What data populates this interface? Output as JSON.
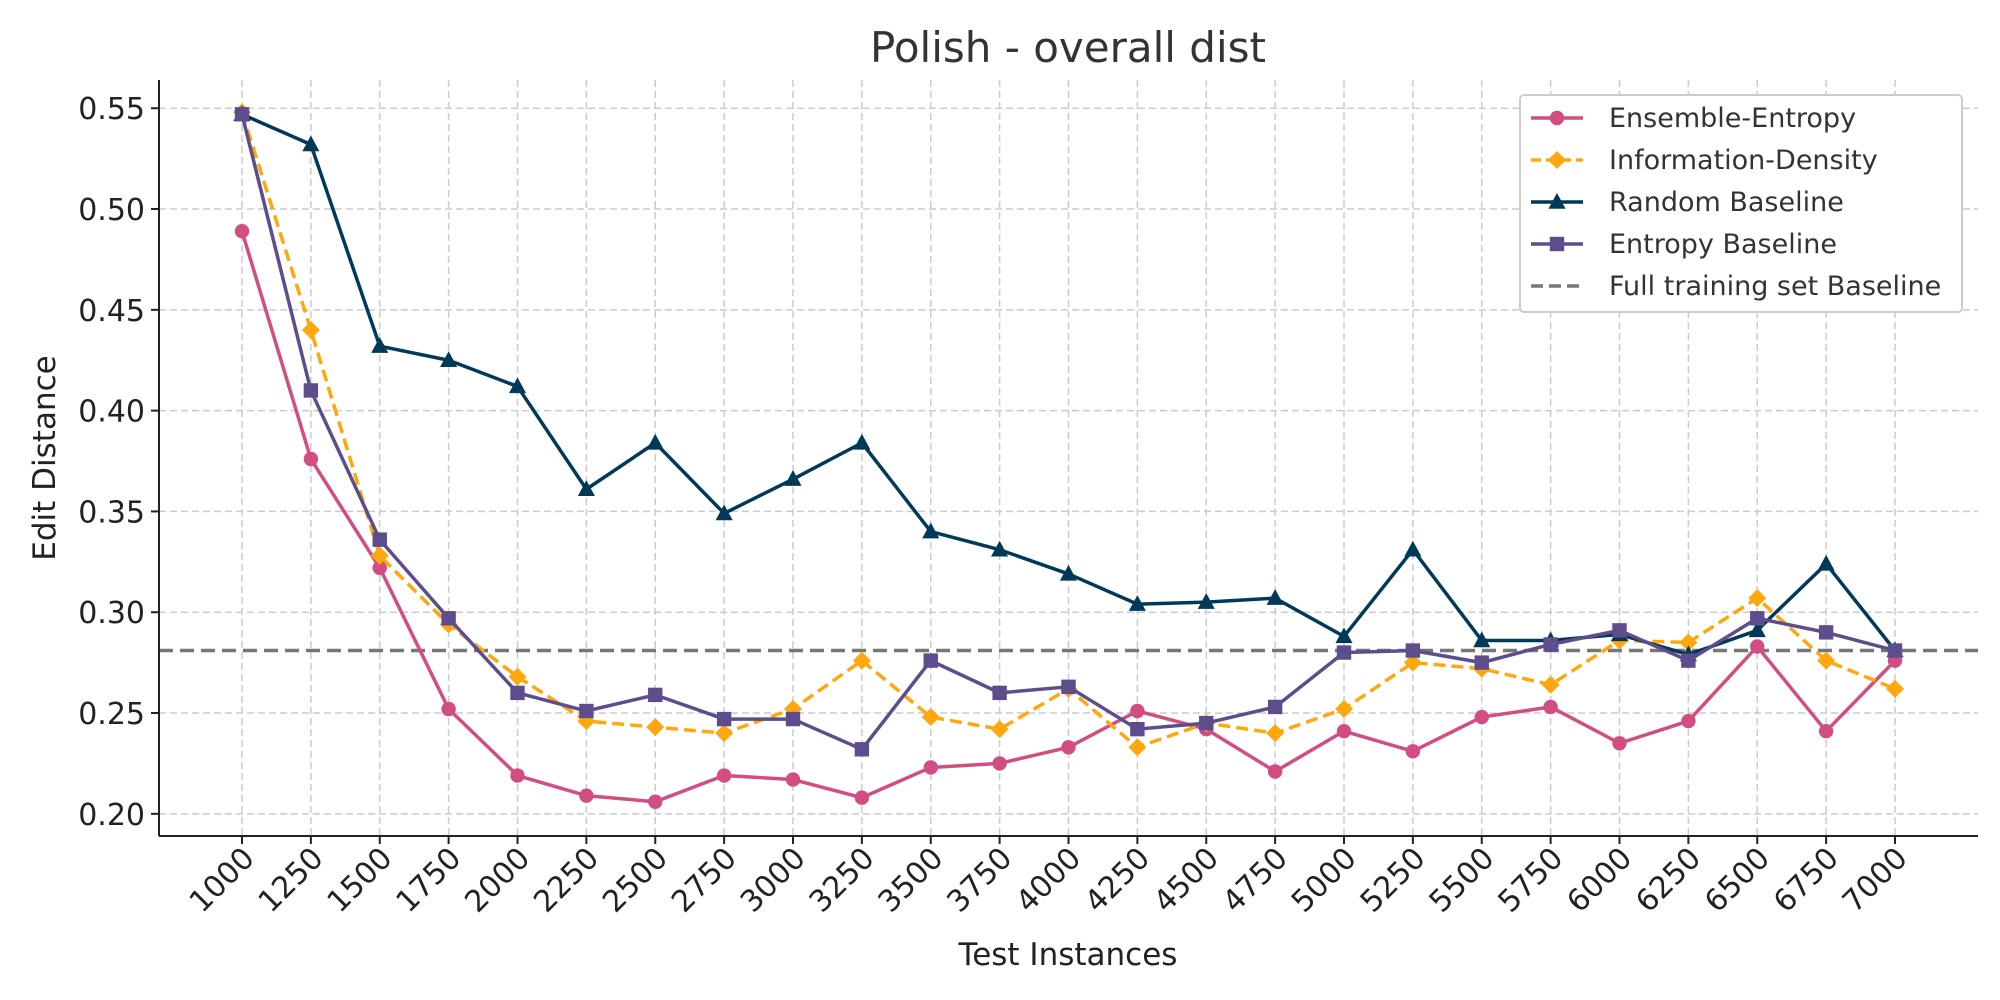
{
  "chart_data": {
    "type": "line",
    "title": "Polish - overall dist",
    "xlabel": "Test Instances",
    "ylabel": "Edit Distance",
    "x": [
      1000,
      1250,
      1500,
      1750,
      2000,
      2250,
      2500,
      2750,
      3000,
      3250,
      3500,
      3750,
      4000,
      4250,
      4500,
      4750,
      5000,
      5250,
      5500,
      5750,
      6000,
      6250,
      6500,
      6750,
      7000
    ],
    "x_tick_labels": [
      "1000",
      "1250",
      "1500",
      "1750",
      "2000",
      "2250",
      "2500",
      "2750",
      "3000",
      "3250",
      "3500",
      "3750",
      "4000",
      "4250",
      "4500",
      "4750",
      "5000",
      "5250",
      "5500",
      "5750",
      "6000",
      "6250",
      "6500",
      "6750",
      "7000"
    ],
    "y_ticks": [
      0.2,
      0.25,
      0.3,
      0.35,
      0.4,
      0.45,
      0.5,
      0.55
    ],
    "y_tick_labels": [
      "0.20",
      "0.25",
      "0.30",
      "0.35",
      "0.40",
      "0.45",
      "0.50",
      "0.55"
    ],
    "ylim": [
      0.189,
      0.564
    ],
    "grid": true,
    "legend_position": "top-right",
    "series": [
      {
        "name": "Ensemble-Entropy",
        "color": "#d14d82",
        "marker": "circle",
        "dash": "solid",
        "values": [
          0.489,
          0.376,
          0.322,
          0.252,
          0.219,
          0.209,
          0.206,
          0.219,
          0.217,
          0.208,
          0.223,
          0.225,
          0.233,
          0.251,
          0.242,
          0.221,
          0.241,
          0.231,
          0.248,
          0.253,
          0.235,
          0.246,
          0.283,
          0.241,
          0.276
        ]
      },
      {
        "name": "Information-Density",
        "color": "#ffa70f",
        "marker": "diamond",
        "dash": "dashed",
        "values": [
          0.548,
          0.44,
          0.328,
          0.294,
          0.268,
          0.246,
          0.243,
          0.24,
          0.252,
          0.276,
          0.248,
          0.242,
          0.262,
          0.233,
          0.245,
          0.24,
          0.252,
          0.275,
          0.272,
          0.264,
          0.286,
          0.285,
          0.307,
          0.276,
          0.262
        ]
      },
      {
        "name": "Random Baseline",
        "color": "#003a58",
        "marker": "triangle",
        "dash": "solid",
        "values": [
          0.547,
          0.532,
          0.432,
          0.425,
          0.412,
          0.361,
          0.384,
          0.349,
          0.366,
          0.384,
          0.34,
          0.331,
          0.319,
          0.304,
          0.305,
          0.307,
          0.288,
          0.331,
          0.286,
          0.286,
          0.289,
          0.279,
          0.291,
          0.324,
          0.281
        ]
      },
      {
        "name": "Entropy Baseline",
        "color": "#5d4d8d",
        "marker": "square",
        "dash": "solid",
        "values": [
          0.547,
          0.41,
          0.336,
          0.297,
          0.26,
          0.251,
          0.259,
          0.247,
          0.247,
          0.232,
          0.276,
          0.26,
          0.263,
          0.242,
          0.245,
          0.253,
          0.28,
          0.281,
          0.275,
          0.284,
          0.291,
          0.276,
          0.297,
          0.29,
          0.281
        ]
      }
    ],
    "baseline": {
      "name": "Full training set Baseline",
      "value": 0.281,
      "color": "#777777",
      "dash": "dashed"
    }
  }
}
